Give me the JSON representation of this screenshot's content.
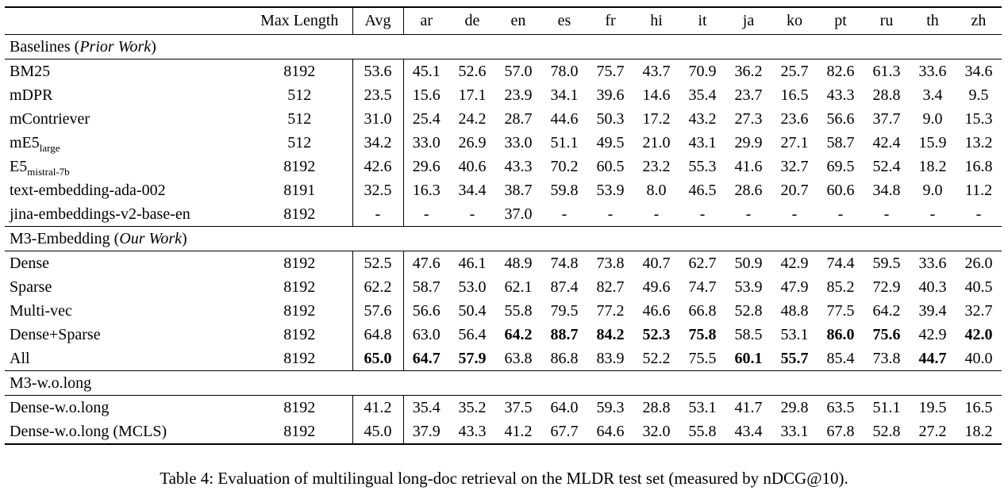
{
  "caption": "Table 4: Evaluation of multilingual long-doc retrieval on the MLDR test set (measured by nDCG@10).",
  "table": {
    "columns": {
      "label": "",
      "max_length": "Max Length",
      "avg": "Avg",
      "languages": [
        "ar",
        "de",
        "en",
        "es",
        "fr",
        "hi",
        "it",
        "ja",
        "ko",
        "pt",
        "ru",
        "th",
        "zh"
      ]
    },
    "sections": [
      {
        "title": {
          "pre": "Baselines (",
          "italic": "Prior Work",
          "post": ")"
        },
        "rows": [
          {
            "label": "BM25",
            "label_sub": "",
            "max_length": "8192",
            "avg": "53.6",
            "avg_bold": false,
            "values": [
              "45.1",
              "52.6",
              "57.0",
              "78.0",
              "75.7",
              "43.7",
              "70.9",
              "36.2",
              "25.7",
              "82.6",
              "61.3",
              "33.6",
              "34.6"
            ],
            "bold": [
              0,
              0,
              0,
              0,
              0,
              0,
              0,
              0,
              0,
              0,
              0,
              0,
              0
            ]
          },
          {
            "label": "mDPR",
            "label_sub": "",
            "max_length": "512",
            "avg": "23.5",
            "avg_bold": false,
            "values": [
              "15.6",
              "17.1",
              "23.9",
              "34.1",
              "39.6",
              "14.6",
              "35.4",
              "23.7",
              "16.5",
              "43.3",
              "28.8",
              "3.4",
              "9.5"
            ],
            "bold": [
              0,
              0,
              0,
              0,
              0,
              0,
              0,
              0,
              0,
              0,
              0,
              0,
              0
            ]
          },
          {
            "label": "mContriever",
            "label_sub": "",
            "max_length": "512",
            "avg": "31.0",
            "avg_bold": false,
            "values": [
              "25.4",
              "24.2",
              "28.7",
              "44.6",
              "50.3",
              "17.2",
              "43.2",
              "27.3",
              "23.6",
              "56.6",
              "37.7",
              "9.0",
              "15.3"
            ],
            "bold": [
              0,
              0,
              0,
              0,
              0,
              0,
              0,
              0,
              0,
              0,
              0,
              0,
              0
            ]
          },
          {
            "label": "mE5",
            "label_sub": "large",
            "max_length": "512",
            "avg": "34.2",
            "avg_bold": false,
            "values": [
              "33.0",
              "26.9",
              "33.0",
              "51.1",
              "49.5",
              "21.0",
              "43.1",
              "29.9",
              "27.1",
              "58.7",
              "42.4",
              "15.9",
              "13.2"
            ],
            "bold": [
              0,
              0,
              0,
              0,
              0,
              0,
              0,
              0,
              0,
              0,
              0,
              0,
              0
            ]
          },
          {
            "label": "E5",
            "label_sub": "mistral-7b",
            "max_length": "8192",
            "avg": "42.6",
            "avg_bold": false,
            "values": [
              "29.6",
              "40.6",
              "43.3",
              "70.2",
              "60.5",
              "23.2",
              "55.3",
              "41.6",
              "32.7",
              "69.5",
              "52.4",
              "18.2",
              "16.8"
            ],
            "bold": [
              0,
              0,
              0,
              0,
              0,
              0,
              0,
              0,
              0,
              0,
              0,
              0,
              0
            ]
          },
          {
            "label": "text-embedding-ada-002",
            "label_sub": "",
            "max_length": "8191",
            "avg": "32.5",
            "avg_bold": false,
            "values": [
              "16.3",
              "34.4",
              "38.7",
              "59.8",
              "53.9",
              "8.0",
              "46.5",
              "28.6",
              "20.7",
              "60.6",
              "34.8",
              "9.0",
              "11.2"
            ],
            "bold": [
              0,
              0,
              0,
              0,
              0,
              0,
              0,
              0,
              0,
              0,
              0,
              0,
              0
            ]
          },
          {
            "label": "jina-embeddings-v2-base-en",
            "label_sub": "",
            "max_length": "8192",
            "avg": "-",
            "avg_bold": false,
            "values": [
              "-",
              "-",
              "37.0",
              "-",
              "-",
              "-",
              "-",
              "-",
              "-",
              "-",
              "-",
              "-",
              "-"
            ],
            "bold": [
              0,
              0,
              0,
              0,
              0,
              0,
              0,
              0,
              0,
              0,
              0,
              0,
              0
            ]
          }
        ]
      },
      {
        "title": {
          "pre": "M3-Embedding (",
          "italic": "Our Work",
          "post": ")"
        },
        "rows": [
          {
            "label": "Dense",
            "label_sub": "",
            "max_length": "8192",
            "avg": "52.5",
            "avg_bold": false,
            "values": [
              "47.6",
              "46.1",
              "48.9",
              "74.8",
              "73.8",
              "40.7",
              "62.7",
              "50.9",
              "42.9",
              "74.4",
              "59.5",
              "33.6",
              "26.0"
            ],
            "bold": [
              0,
              0,
              0,
              0,
              0,
              0,
              0,
              0,
              0,
              0,
              0,
              0,
              0
            ]
          },
          {
            "label": "Sparse",
            "label_sub": "",
            "max_length": "8192",
            "avg": "62.2",
            "avg_bold": false,
            "values": [
              "58.7",
              "53.0",
              "62.1",
              "87.4",
              "82.7",
              "49.6",
              "74.7",
              "53.9",
              "47.9",
              "85.2",
              "72.9",
              "40.3",
              "40.5"
            ],
            "bold": [
              0,
              0,
              0,
              0,
              0,
              0,
              0,
              0,
              0,
              0,
              0,
              0,
              0
            ]
          },
          {
            "label": "Multi-vec",
            "label_sub": "",
            "max_length": "8192",
            "avg": "57.6",
            "avg_bold": false,
            "values": [
              "56.6",
              "50.4",
              "55.8",
              "79.5",
              "77.2",
              "46.6",
              "66.8",
              "52.8",
              "48.8",
              "77.5",
              "64.2",
              "39.4",
              "32.7"
            ],
            "bold": [
              0,
              0,
              0,
              0,
              0,
              0,
              0,
              0,
              0,
              0,
              0,
              0,
              0
            ]
          },
          {
            "label": "Dense+Sparse",
            "label_sub": "",
            "max_length": "8192",
            "avg": "64.8",
            "avg_bold": false,
            "values": [
              "63.0",
              "56.4",
              "64.2",
              "88.7",
              "84.2",
              "52.3",
              "75.8",
              "58.5",
              "53.1",
              "86.0",
              "75.6",
              "42.9",
              "42.0"
            ],
            "bold": [
              0,
              0,
              1,
              1,
              1,
              1,
              1,
              0,
              0,
              1,
              1,
              0,
              1
            ]
          },
          {
            "label": "All",
            "label_sub": "",
            "max_length": "8192",
            "avg": "65.0",
            "avg_bold": true,
            "values": [
              "64.7",
              "57.9",
              "63.8",
              "86.8",
              "83.9",
              "52.2",
              "75.5",
              "60.1",
              "55.7",
              "85.4",
              "73.8",
              "44.7",
              "40.0"
            ],
            "bold": [
              1,
              1,
              0,
              0,
              0,
              0,
              0,
              1,
              1,
              0,
              0,
              1,
              0
            ]
          }
        ]
      },
      {
        "title": {
          "pre": "M3-w.o.long",
          "italic": "",
          "post": ""
        },
        "rows": [
          {
            "label": "Dense-w.o.long",
            "label_sub": "",
            "max_length": "8192",
            "avg": "41.2",
            "avg_bold": false,
            "values": [
              "35.4",
              "35.2",
              "37.5",
              "64.0",
              "59.3",
              "28.8",
              "53.1",
              "41.7",
              "29.8",
              "63.5",
              "51.1",
              "19.5",
              "16.5"
            ],
            "bold": [
              0,
              0,
              0,
              0,
              0,
              0,
              0,
              0,
              0,
              0,
              0,
              0,
              0
            ]
          },
          {
            "label": "Dense-w.o.long (MCLS)",
            "label_sub": "",
            "max_length": "8192",
            "avg": "45.0",
            "avg_bold": false,
            "values": [
              "37.9",
              "43.3",
              "41.2",
              "67.7",
              "64.6",
              "32.0",
              "55.8",
              "43.4",
              "33.1",
              "67.8",
              "52.8",
              "27.2",
              "18.2"
            ],
            "bold": [
              0,
              0,
              0,
              0,
              0,
              0,
              0,
              0,
              0,
              0,
              0,
              0,
              0
            ]
          }
        ]
      }
    ]
  }
}
